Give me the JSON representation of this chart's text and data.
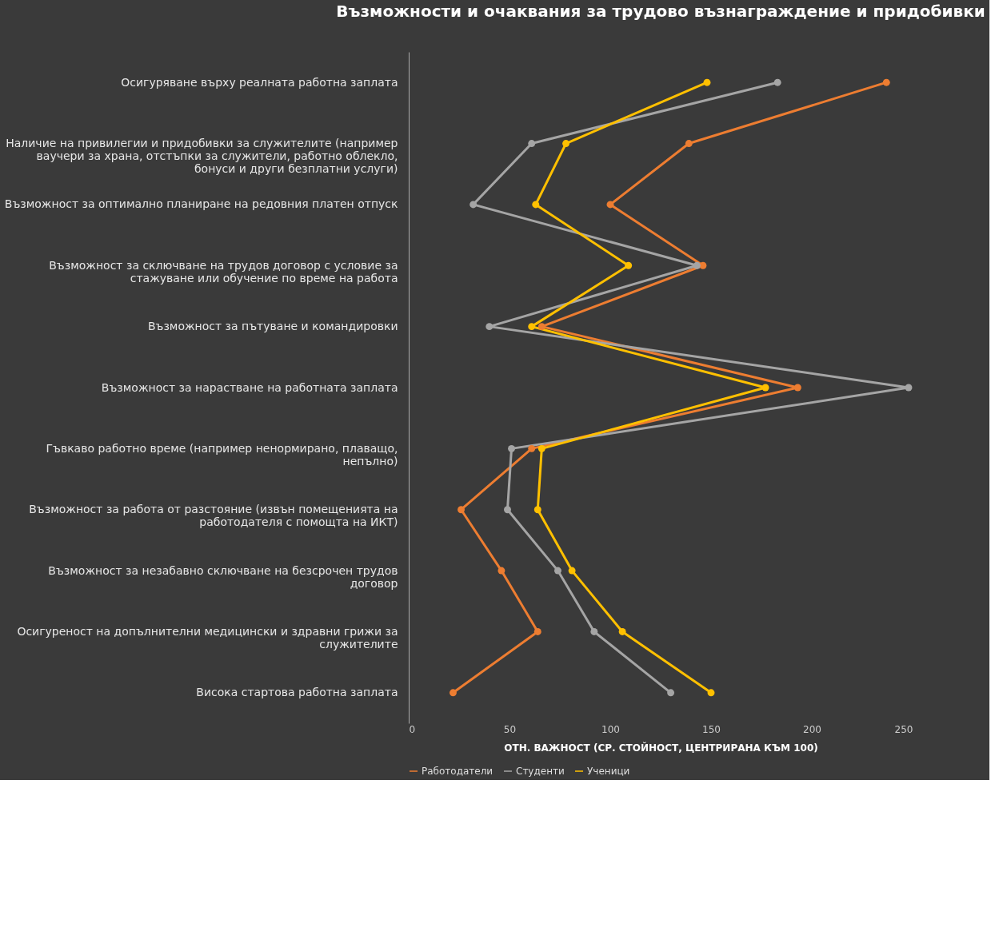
{
  "chart_data": {
    "type": "line",
    "title": "Възможности и очаквания за трудово възнаграждение и придобивки",
    "orientation": "horizontal",
    "categories": [
      "Осигуряване върху реалната работна заплата",
      "Наличие на привилегии и придобивки за служителите (например ваучери за храна, отстъпки за служители, работно облекло, бонуси и други безплатни услуги)",
      "Възможност за оптимално планиране на редовния платен отпуск",
      "Възможност за сключване на трудов договор с условие за стажуване или обучение по време на работа",
      "Възможност за пътуване и командировки",
      "Възможност за нарастване на работната заплата",
      "Гъвкаво работно време (например ненормирано, плаващо, непълно)",
      "Възможност за работа от разстояние (извън помещенията на работодателя с помощта на ИКТ)",
      "Възможност за незабавно сключване на безсрочен трудов договор",
      "Осигуреност на допълнителни медицински и здравни грижи за служителите",
      "Висока стартова работна заплата"
    ],
    "series": [
      {
        "name": "Работодатели",
        "color": "#ed7d31",
        "values": [
          237,
          139,
          100,
          146,
          66,
          193,
          61,
          26,
          46,
          64,
          22
        ]
      },
      {
        "name": "Студенти",
        "color": "#a5a5a5",
        "values": [
          183,
          61,
          32,
          143,
          40,
          248,
          51,
          49,
          74,
          92,
          130
        ]
      },
      {
        "name": "Ученици",
        "color": "#ffc000",
        "values": [
          148,
          78,
          63,
          109,
          61,
          177,
          66,
          64,
          81,
          106,
          150
        ]
      }
    ],
    "xlabel": "ОТН. ВАЖНОСТ (СР. СТОЙНОСТ, ЦЕНТРИРАНА КЪМ 100)",
    "xlim": [
      0,
      250
    ],
    "xticks": [
      0,
      50,
      100,
      150,
      200,
      250
    ],
    "marker": "circle",
    "grid": false,
    "legend": "bottom"
  }
}
